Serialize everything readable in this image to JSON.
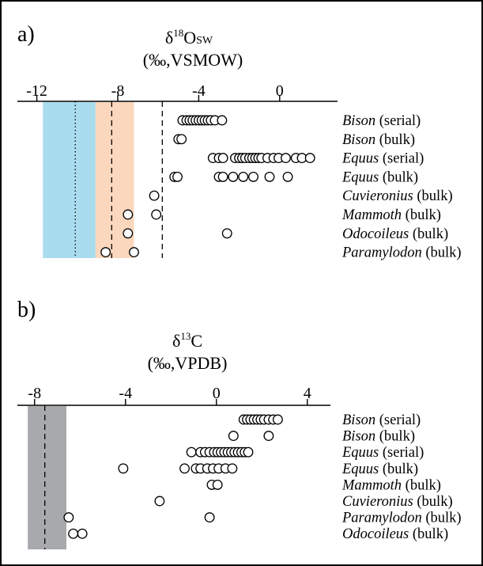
{
  "chart_data": [
    {
      "panel_label": "a)",
      "type": "scatter",
      "title_symbol": "δ",
      "title_super": "18",
      "title_main": "O",
      "title_sub": "SW",
      "unit": "(‰,VSMOW)",
      "xlim": [
        -13,
        2
      ],
      "x_ticks": [
        -12,
        -8,
        -4,
        0
      ],
      "tick_labels": [
        "-12",
        "-8",
        "-4",
        "0"
      ],
      "shaded_bands": [
        {
          "from": -11.7,
          "to": -9.1,
          "color": "#aadcef"
        },
        {
          "from": -9.1,
          "to": -7.2,
          "color": "#fbd7bd"
        }
      ],
      "reference_lines": [
        {
          "x": -10.1,
          "style": "dotted"
        },
        {
          "x": -8.3,
          "style": "dashed"
        },
        {
          "x": -5.8,
          "style": "dashed"
        }
      ],
      "series": [
        {
          "name_italic": "Bison",
          "name_rest": " (serial)",
          "values": [
            -4.8,
            -4.6,
            -4.45,
            -4.3,
            -4.15,
            -4.0,
            -3.85,
            -3.7,
            -3.55,
            -3.4,
            -3.2,
            -2.85
          ]
        },
        {
          "name_italic": "Bison",
          "name_rest": " (bulk)",
          "values": [
            -5.0,
            -4.85
          ]
        },
        {
          "name_italic": "Equus",
          "name_rest": " (serial)",
          "values": [
            -3.3,
            -3.0,
            -2.8,
            -2.2,
            -2.0,
            -1.85,
            -1.7,
            -1.5,
            -1.35,
            -1.2,
            -1.05,
            -0.9,
            -0.6,
            -0.3,
            -0.05,
            0.3,
            0.8,
            1.1,
            1.5
          ]
        },
        {
          "name_italic": "Equus",
          "name_rest": " (bulk)",
          "values": [
            -5.2,
            -5.05,
            -3.0,
            -2.8,
            -2.3,
            -1.8,
            -1.3,
            -0.5,
            0.4
          ]
        },
        {
          "name_italic": "Cuvieronius",
          "name_rest": " (bulk)",
          "values": [
            -6.2
          ]
        },
        {
          "name_italic": "Mammoth",
          "name_rest": " (bulk)",
          "values": [
            -7.5,
            -6.1
          ]
        },
        {
          "name_italic": "Odocoileus",
          "name_rest": " (bulk)",
          "values": [
            -7.5,
            -2.6
          ]
        },
        {
          "name_italic": "Paramylodon",
          "name_rest": " (bulk)",
          "values": [
            -8.6,
            -7.2
          ]
        }
      ]
    },
    {
      "panel_label": "b)",
      "type": "scatter",
      "title_symbol": "δ",
      "title_super": "13",
      "title_main": "C",
      "title_sub": "",
      "unit": "(‰,VPDB)",
      "xlim": [
        -9,
        4.7
      ],
      "x_ticks": [
        -8,
        -4,
        0,
        4
      ],
      "tick_labels": [
        "-8",
        "-4",
        "0",
        "4"
      ],
      "shaded_bands": [
        {
          "from": -8.3,
          "to": -6.6,
          "color": "#a8a9ad"
        }
      ],
      "reference_lines": [
        {
          "x": -7.55,
          "style": "dashed"
        }
      ],
      "series": [
        {
          "name_italic": "Bison",
          "name_rest": " (serial)",
          "values": [
            1.2,
            1.35,
            1.5,
            1.65,
            1.8,
            1.95,
            2.1,
            2.3,
            2.5,
            2.7
          ]
        },
        {
          "name_italic": "Bison",
          "name_rest": " (bulk)",
          "values": [
            0.75,
            2.3
          ]
        },
        {
          "name_italic": "Equus",
          "name_rest": " (serial)",
          "values": [
            -1.1,
            -0.7,
            -0.5,
            -0.3,
            -0.1,
            0.05,
            0.2,
            0.35,
            0.5,
            0.65,
            0.8,
            0.95,
            1.1,
            1.25,
            1.4
          ]
        },
        {
          "name_italic": "Equus",
          "name_rest": " (bulk)",
          "values": [
            -4.1,
            -1.4,
            -0.9,
            -0.7,
            -0.4,
            -0.15,
            0.1,
            0.4,
            0.7
          ]
        },
        {
          "name_italic": "Mammoth",
          "name_rest": " (bulk)",
          "values": [
            -0.2,
            0.05
          ]
        },
        {
          "name_italic": "Cuvieronius",
          "name_rest": " (bulk)",
          "values": [
            -2.5
          ]
        },
        {
          "name_italic": "Paramylodon",
          "name_rest": " (bulk)",
          "values": [
            -6.5,
            -0.3
          ]
        },
        {
          "name_italic": "Odocoileus",
          "name_rest": " (bulk)",
          "values": [
            -6.3,
            -5.9
          ]
        }
      ]
    }
  ]
}
